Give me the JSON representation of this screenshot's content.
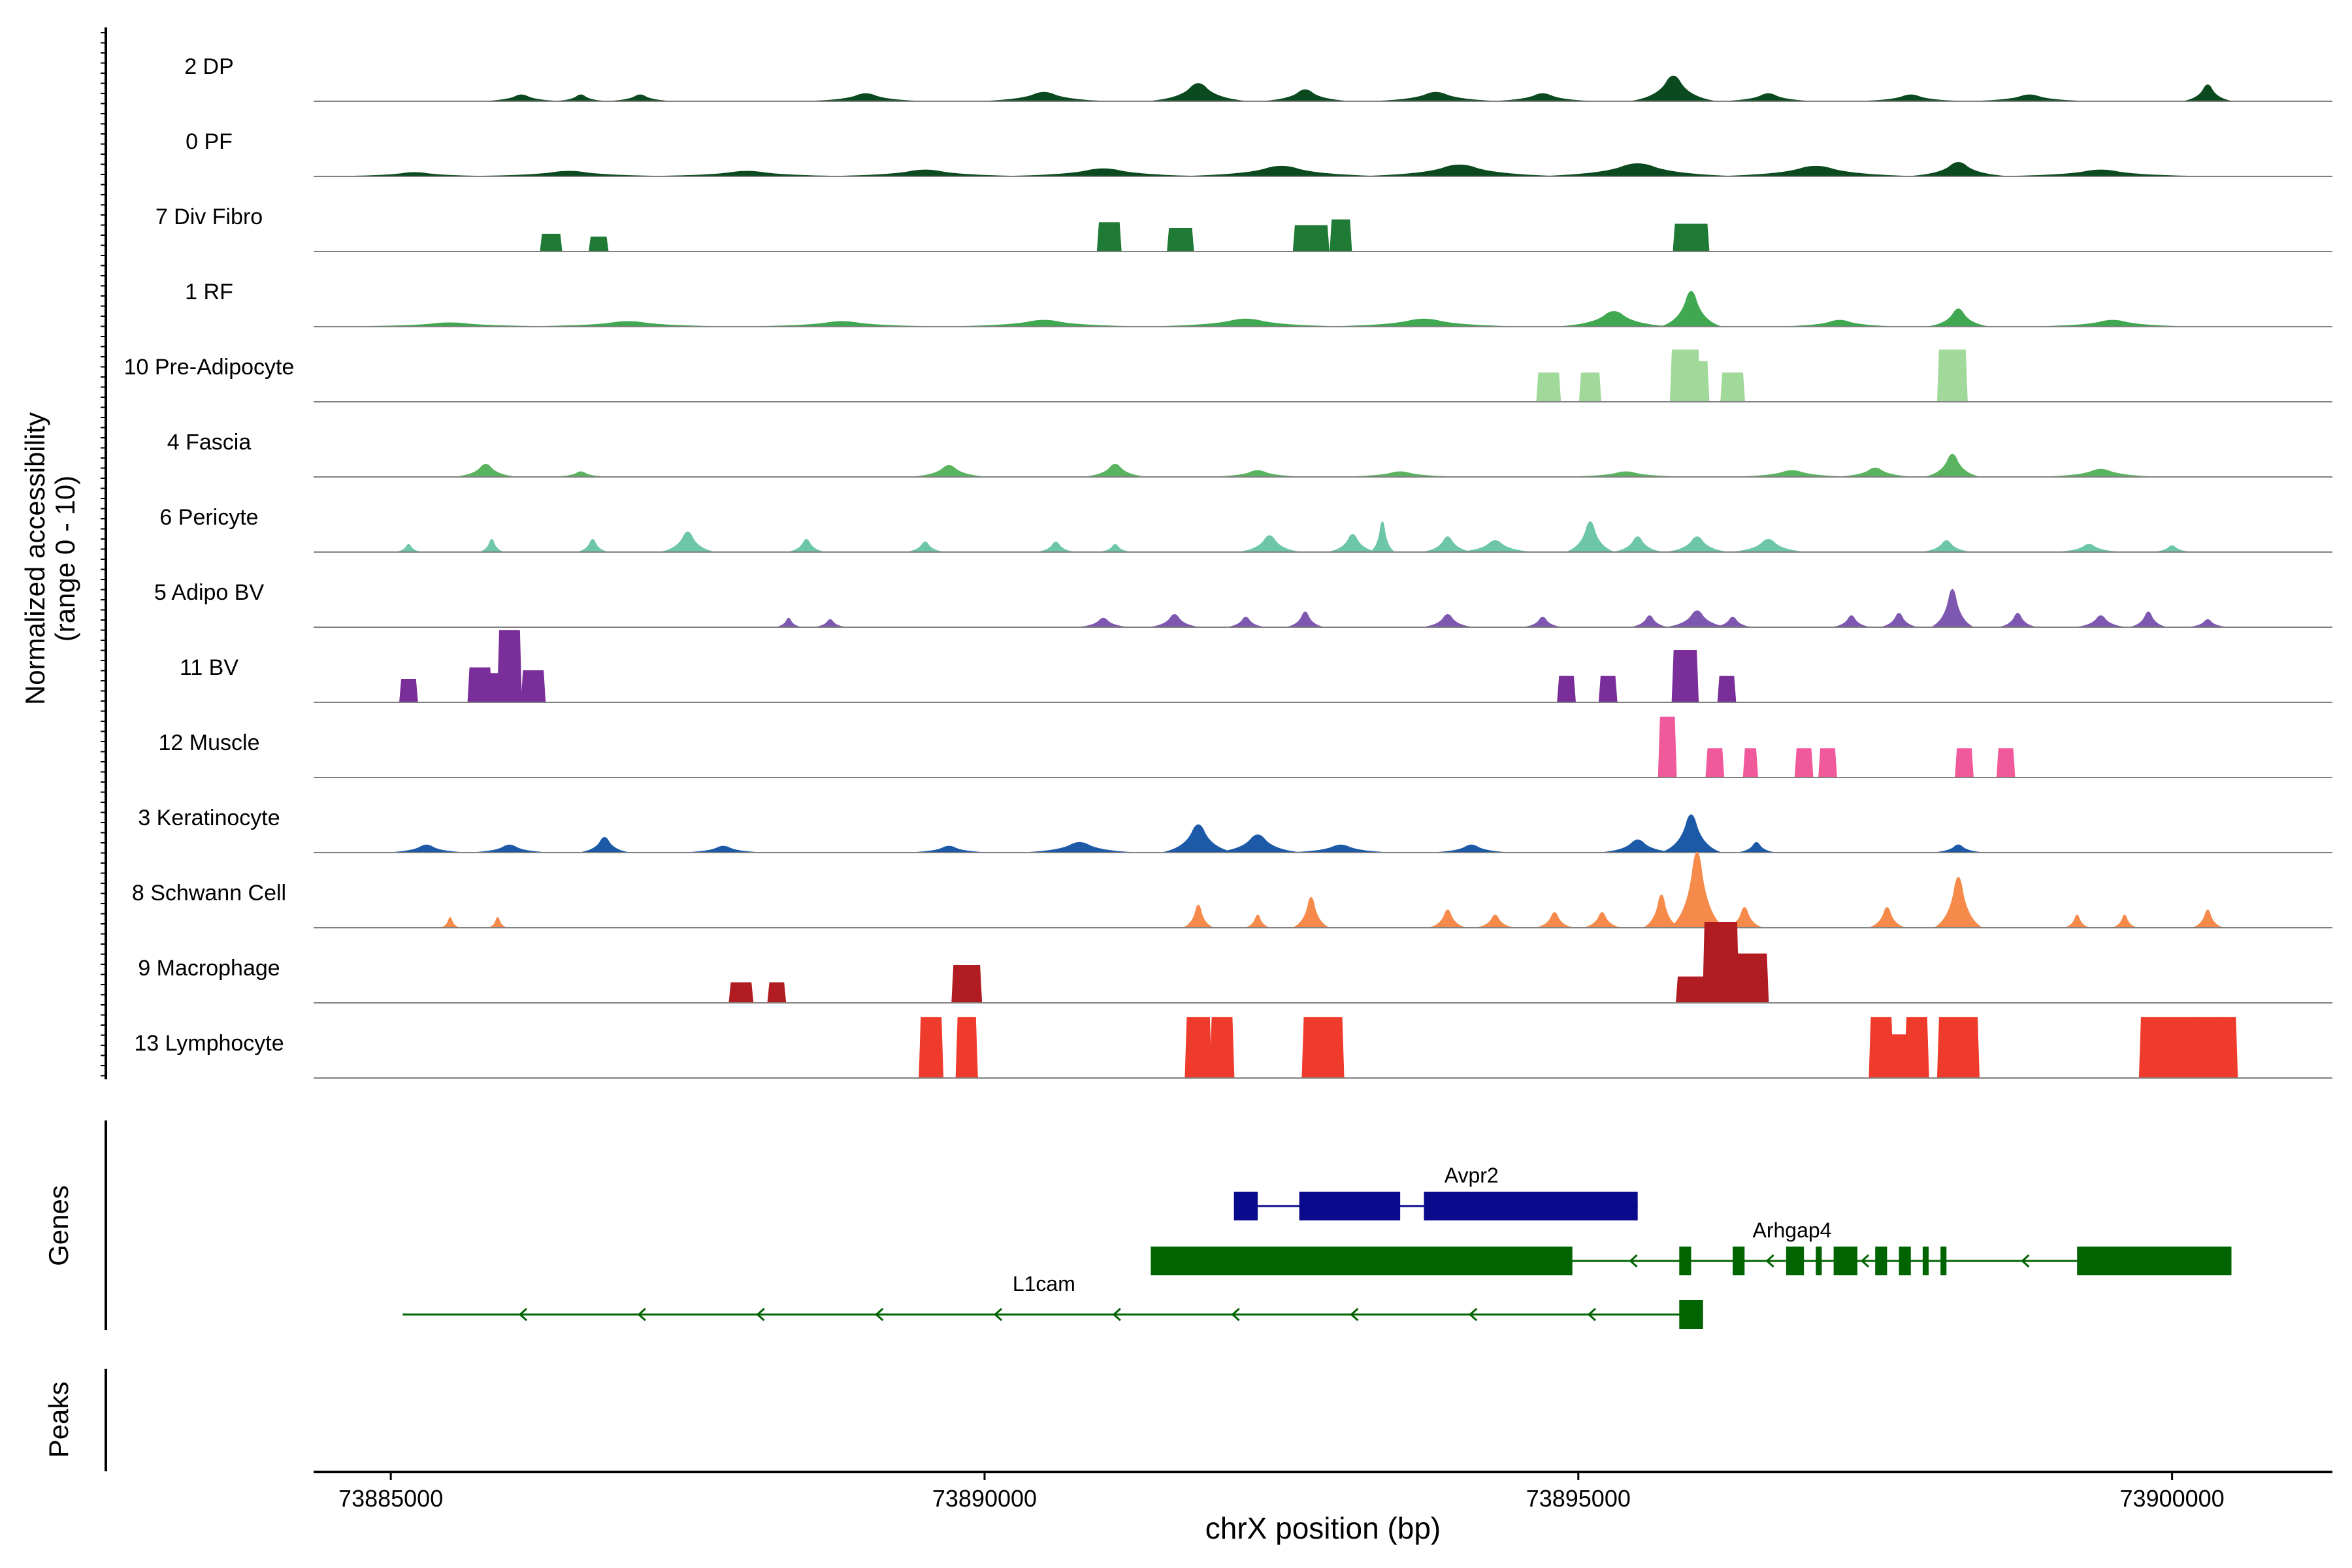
{
  "chart_data": {
    "type": "area",
    "title": "",
    "xlabel": "chrX position (bp)",
    "ylabel_line1": "Normalized accessibility",
    "ylabel_line2": "(range 0 - 10)",
    "xlim": [
      73884350,
      73901350
    ],
    "xticks": [
      73885000,
      73890000,
      73895000,
      73900000
    ],
    "xtick_labels": [
      "73885000",
      "73890000",
      "73895000",
      "73900000"
    ],
    "ylim": [
      0,
      10
    ],
    "genes_label": "Genes",
    "peaks_label": "Peaks",
    "tracks": [
      {
        "name": "2 DP",
        "color": "#0b4a1e",
        "peaks": [
          [
            73886100,
            0.5,
            600
          ],
          [
            73886600,
            0.5,
            400
          ],
          [
            73887100,
            0.5,
            500
          ],
          [
            73889000,
            0.6,
            900
          ],
          [
            73890500,
            0.7,
            1000
          ],
          [
            73891800,
            1.4,
            800
          ],
          [
            73892700,
            0.9,
            700
          ],
          [
            73893800,
            0.7,
            1000
          ],
          [
            73894700,
            0.6,
            800
          ],
          [
            73895800,
            2.0,
            700
          ],
          [
            73896600,
            0.6,
            700
          ],
          [
            73897800,
            0.5,
            800
          ],
          [
            73898800,
            0.5,
            900
          ],
          [
            73900300,
            1.3,
            400
          ]
        ]
      },
      {
        "name": "0 PF",
        "color": "#0b4a1e",
        "peaks": [
          [
            73885200,
            0.3,
            1200
          ],
          [
            73886500,
            0.4,
            1600
          ],
          [
            73888000,
            0.4,
            1600
          ],
          [
            73889500,
            0.5,
            1600
          ],
          [
            73891000,
            0.6,
            1600
          ],
          [
            73892500,
            0.8,
            1600
          ],
          [
            73894000,
            0.9,
            1600
          ],
          [
            73895500,
            1.0,
            1600
          ],
          [
            73897000,
            0.8,
            1600
          ],
          [
            73898200,
            1.1,
            800
          ],
          [
            73899400,
            0.5,
            1600
          ]
        ]
      },
      {
        "name": "7 Div Fibro",
        "color": "#1e7a35",
        "flat": true,
        "peaks": [
          [
            73886350,
            1.2,
            180
          ],
          [
            73886750,
            1.0,
            160
          ],
          [
            73891050,
            2.0,
            200
          ],
          [
            73891650,
            1.6,
            220
          ],
          [
            73892750,
            1.8,
            300
          ],
          [
            73893000,
            2.2,
            180
          ],
          [
            73895950,
            1.9,
            300
          ]
        ]
      },
      {
        "name": "1 RF",
        "color": "#41a852",
        "peaks": [
          [
            73885500,
            0.3,
            1600
          ],
          [
            73887000,
            0.4,
            1600
          ],
          [
            73888800,
            0.4,
            1500
          ],
          [
            73890500,
            0.5,
            1500
          ],
          [
            73892200,
            0.6,
            1500
          ],
          [
            73893700,
            0.6,
            1500
          ],
          [
            73895300,
            1.2,
            900
          ],
          [
            73895950,
            2.8,
            500
          ],
          [
            73897200,
            0.5,
            900
          ],
          [
            73898200,
            1.4,
            500
          ],
          [
            73899500,
            0.5,
            1200
          ]
        ]
      },
      {
        "name": "10 Pre-Adipocyte",
        "color": "#a1d99b",
        "flat": true,
        "peaks": [
          [
            73894750,
            2.0,
            200
          ],
          [
            73895100,
            2.0,
            180
          ],
          [
            73895900,
            3.6,
            250
          ],
          [
            73896000,
            2.8,
            200
          ],
          [
            73896300,
            2.0,
            200
          ],
          [
            73898150,
            3.6,
            250
          ]
        ]
      },
      {
        "name": "4 Fascia",
        "color": "#5ab35f",
        "peaks": [
          [
            73885800,
            1.0,
            500
          ],
          [
            73886600,
            0.4,
            400
          ],
          [
            73889700,
            0.9,
            600
          ],
          [
            73891100,
            1.0,
            500
          ],
          [
            73892300,
            0.5,
            700
          ],
          [
            73893500,
            0.4,
            900
          ],
          [
            73895400,
            0.4,
            900
          ],
          [
            73896800,
            0.5,
            900
          ],
          [
            73897500,
            0.7,
            600
          ],
          [
            73898150,
            1.8,
            450
          ],
          [
            73899400,
            0.6,
            900
          ]
        ]
      },
      {
        "name": "6 Pericyte",
        "color": "#6ec6a8",
        "peaks": [
          [
            73885150,
            0.6,
            200
          ],
          [
            73885850,
            1.0,
            200
          ],
          [
            73886700,
            1.0,
            250
          ],
          [
            73887500,
            1.6,
            450
          ],
          [
            73888500,
            1.0,
            300
          ],
          [
            73889500,
            0.8,
            300
          ],
          [
            73890600,
            0.8,
            300
          ],
          [
            73891100,
            0.6,
            250
          ],
          [
            73892400,
            1.3,
            500
          ],
          [
            73893100,
            1.4,
            400
          ],
          [
            73893350,
            2.4,
            200
          ],
          [
            73893900,
            1.2,
            400
          ],
          [
            73894300,
            0.9,
            600
          ],
          [
            73895100,
            2.4,
            400
          ],
          [
            73895500,
            1.2,
            400
          ],
          [
            73896000,
            1.2,
            500
          ],
          [
            73896600,
            1.0,
            600
          ],
          [
            73898100,
            0.9,
            400
          ],
          [
            73899300,
            0.6,
            500
          ],
          [
            73900000,
            0.5,
            300
          ]
        ]
      },
      {
        "name": "5 Adipo BV",
        "color": "#7e57b0",
        "peaks": [
          [
            73888350,
            0.7,
            200
          ],
          [
            73888700,
            0.6,
            250
          ],
          [
            73891000,
            0.7,
            400
          ],
          [
            73891600,
            1.0,
            400
          ],
          [
            73892200,
            0.8,
            300
          ],
          [
            73892700,
            1.2,
            300
          ],
          [
            73893900,
            1.0,
            400
          ],
          [
            73894700,
            0.8,
            300
          ],
          [
            73895600,
            0.9,
            300
          ],
          [
            73896000,
            1.3,
            500
          ],
          [
            73896300,
            0.8,
            300
          ],
          [
            73897300,
            0.9,
            300
          ],
          [
            73897700,
            1.1,
            300
          ],
          [
            73898150,
            3.0,
            350
          ],
          [
            73898700,
            1.1,
            300
          ],
          [
            73899400,
            0.9,
            400
          ],
          [
            73899800,
            1.2,
            300
          ],
          [
            73900300,
            0.6,
            300
          ]
        ]
      },
      {
        "name": "11 BV",
        "color": "#7a2e9a",
        "flat": true,
        "peaks": [
          [
            73885150,
            1.6,
            150
          ],
          [
            73885750,
            2.4,
            200
          ],
          [
            73885900,
            2.0,
            150
          ],
          [
            73886000,
            5.0,
            200
          ],
          [
            73886200,
            2.2,
            200
          ],
          [
            73894900,
            1.8,
            150
          ],
          [
            73895250,
            1.8,
            150
          ],
          [
            73895900,
            3.6,
            220
          ],
          [
            73896250,
            1.8,
            150
          ]
        ]
      },
      {
        "name": "12 Muscle",
        "color": "#f05a9a",
        "flat": true,
        "peaks": [
          [
            73895750,
            4.2,
            150
          ],
          [
            73896150,
            2.0,
            150
          ],
          [
            73896450,
            2.0,
            120
          ],
          [
            73896900,
            2.0,
            150
          ],
          [
            73897100,
            2.0,
            150
          ],
          [
            73898250,
            2.0,
            150
          ],
          [
            73898600,
            2.0,
            150
          ]
        ]
      },
      {
        "name": "3 Keratinocyte",
        "color": "#1c5aa8",
        "peaks": [
          [
            73885300,
            0.6,
            600
          ],
          [
            73886000,
            0.6,
            600
          ],
          [
            73886800,
            1.2,
            400
          ],
          [
            73887800,
            0.5,
            600
          ],
          [
            73889700,
            0.5,
            600
          ],
          [
            73890800,
            0.8,
            900
          ],
          [
            73891800,
            2.2,
            600
          ],
          [
            73892300,
            1.4,
            700
          ],
          [
            73893000,
            0.6,
            800
          ],
          [
            73894100,
            0.6,
            600
          ],
          [
            73895500,
            1.0,
            600
          ],
          [
            73895950,
            3.0,
            500
          ],
          [
            73896500,
            0.8,
            300
          ],
          [
            73898200,
            0.6,
            400
          ]
        ]
      },
      {
        "name": "8 Schwann Cell",
        "color": "#f58a4a",
        "peaks": [
          [
            73885500,
            0.8,
            150
          ],
          [
            73885900,
            0.8,
            150
          ],
          [
            73891800,
            1.8,
            250
          ],
          [
            73892300,
            1.0,
            200
          ],
          [
            73892750,
            2.4,
            300
          ],
          [
            73893900,
            1.4,
            300
          ],
          [
            73894300,
            1.0,
            300
          ],
          [
            73894800,
            1.2,
            300
          ],
          [
            73895200,
            1.2,
            300
          ],
          [
            73895700,
            2.6,
            300
          ],
          [
            73896000,
            6.0,
            450
          ],
          [
            73896400,
            1.6,
            300
          ],
          [
            73897600,
            1.6,
            300
          ],
          [
            73898200,
            4.0,
            400
          ],
          [
            73899200,
            1.0,
            200
          ],
          [
            73899600,
            1.0,
            200
          ],
          [
            73900300,
            1.4,
            250
          ]
        ]
      },
      {
        "name": "9 Macrophage",
        "color": "#b01c22",
        "flat": true,
        "peaks": [
          [
            73887950,
            1.4,
            200
          ],
          [
            73888250,
            1.4,
            150
          ],
          [
            73889850,
            2.6,
            250
          ],
          [
            73895950,
            1.8,
            250
          ],
          [
            73896200,
            5.6,
            300
          ],
          [
            73896450,
            3.4,
            300
          ]
        ]
      },
      {
        "name": "13 Lymphocyte",
        "color": "#ef3b2c",
        "flat": true,
        "peaks": [
          [
            73889550,
            4.2,
            200
          ],
          [
            73889850,
            4.2,
            180
          ],
          [
            73891800,
            4.2,
            220
          ],
          [
            73892000,
            4.2,
            200
          ],
          [
            73892850,
            4.2,
            350
          ],
          [
            73897550,
            4.2,
            200
          ],
          [
            73897700,
            3.0,
            300
          ],
          [
            73897850,
            4.2,
            200
          ],
          [
            73898200,
            4.2,
            350
          ],
          [
            73899900,
            4.2,
            350
          ],
          [
            73900150,
            4.2,
            200
          ],
          [
            73900300,
            4.2,
            200
          ],
          [
            73900450,
            4.2,
            200
          ]
        ]
      }
    ],
    "genes": [
      {
        "name": "Avpr2",
        "color": "#0a0a8c",
        "strand": "+",
        "start": 73892100,
        "end": 73895500,
        "exons": [
          [
            73892100,
            73892300
          ],
          [
            73892650,
            73893500
          ],
          [
            73893700,
            73895500
          ]
        ],
        "arrows": [],
        "label_at": 73894100,
        "row": 0
      },
      {
        "name": "Arhgap4",
        "color": "#006400",
        "strand": "-",
        "start": 73891400,
        "end": 73900500,
        "exons": [
          [
            73891400,
            73894950
          ],
          [
            73895850,
            73895950
          ],
          [
            73896300,
            73896400
          ],
          [
            73896750,
            73896900
          ],
          [
            73897000,
            73897050
          ],
          [
            73897150,
            73897350
          ],
          [
            73897500,
            73897600
          ],
          [
            73897700,
            73897800
          ],
          [
            73897900,
            73897950
          ],
          [
            73898050,
            73898100
          ],
          [
            73899200,
            73900500
          ]
        ],
        "arrows": [
          73895450,
          73896600,
          73897400,
          73898750
        ],
        "label_at": 73896800,
        "row": 1
      },
      {
        "name": "L1cam",
        "color": "#006400",
        "strand": "-",
        "start": 73885100,
        "end": 73896050,
        "exons": [
          [
            73895850,
            73896050
          ]
        ],
        "arrows": [
          73886100,
          73887100,
          73888100,
          73889100,
          73890100,
          73891100,
          73892100,
          73893100,
          73894100,
          73895100
        ],
        "label_at": 73890500,
        "row": 2
      }
    ]
  }
}
